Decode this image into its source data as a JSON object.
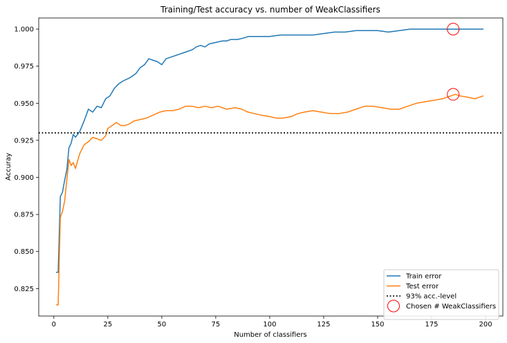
{
  "chart_data": {
    "type": "line",
    "title": "Training/Test accuracy vs. number of WeakClassifiers",
    "xlabel": "Number of classifiers",
    "ylabel": "Accuray",
    "xlim": [
      -7,
      208
    ],
    "ylim": [
      0.8065,
      1.0075
    ],
    "xticks": [
      0,
      25,
      50,
      75,
      100,
      125,
      150,
      175,
      200
    ],
    "yticks": [
      0.825,
      0.85,
      0.875,
      0.9,
      0.925,
      0.95,
      0.975,
      1.0
    ],
    "ytick_labels": [
      "0.825",
      "0.850",
      "0.875",
      "0.900",
      "0.925",
      "0.950",
      "0.975",
      "1.000"
    ],
    "grid": false,
    "legend_position": "lower-right",
    "series": [
      {
        "name": "Train error",
        "color": "#1f77b4",
        "style": "solid",
        "points": [
          [
            1,
            0.836
          ],
          [
            2,
            0.836
          ],
          [
            3,
            0.887
          ],
          [
            4,
            0.89
          ],
          [
            5,
            0.898
          ],
          [
            6,
            0.905
          ],
          [
            7,
            0.92
          ],
          [
            8,
            0.923
          ],
          [
            9,
            0.929
          ],
          [
            10,
            0.927
          ],
          [
            12,
            0.931
          ],
          [
            14,
            0.938
          ],
          [
            16,
            0.946
          ],
          [
            18,
            0.944
          ],
          [
            20,
            0.948
          ],
          [
            22,
            0.947
          ],
          [
            24,
            0.953
          ],
          [
            26,
            0.955
          ],
          [
            28,
            0.96
          ],
          [
            30,
            0.963
          ],
          [
            32,
            0.965
          ],
          [
            35,
            0.967
          ],
          [
            38,
            0.97
          ],
          [
            40,
            0.974
          ],
          [
            42,
            0.976
          ],
          [
            44,
            0.98
          ],
          [
            46,
            0.979
          ],
          [
            48,
            0.978
          ],
          [
            50,
            0.976
          ],
          [
            52,
            0.98
          ],
          [
            54,
            0.981
          ],
          [
            56,
            0.982
          ],
          [
            58,
            0.983
          ],
          [
            60,
            0.984
          ],
          [
            62,
            0.985
          ],
          [
            64,
            0.986
          ],
          [
            66,
            0.988
          ],
          [
            68,
            0.989
          ],
          [
            70,
            0.988
          ],
          [
            72,
            0.99
          ],
          [
            75,
            0.991
          ],
          [
            78,
            0.992
          ],
          [
            80,
            0.992
          ],
          [
            82,
            0.993
          ],
          [
            85,
            0.993
          ],
          [
            88,
            0.994
          ],
          [
            90,
            0.995
          ],
          [
            93,
            0.995
          ],
          [
            96,
            0.995
          ],
          [
            100,
            0.995
          ],
          [
            105,
            0.996
          ],
          [
            110,
            0.996
          ],
          [
            115,
            0.996
          ],
          [
            120,
            0.996
          ],
          [
            125,
            0.997
          ],
          [
            130,
            0.998
          ],
          [
            135,
            0.998
          ],
          [
            140,
            0.999
          ],
          [
            145,
            0.999
          ],
          [
            150,
            0.999
          ],
          [
            155,
            0.998
          ],
          [
            160,
            0.999
          ],
          [
            165,
            1.0
          ],
          [
            170,
            1.0
          ],
          [
            175,
            1.0
          ],
          [
            180,
            1.0
          ],
          [
            185,
            1.0
          ],
          [
            190,
            1.0
          ],
          [
            195,
            1.0
          ],
          [
            199,
            1.0
          ]
        ]
      },
      {
        "name": "Test error",
        "color": "#ff7f0e",
        "style": "solid",
        "points": [
          [
            1,
            0.814
          ],
          [
            2,
            0.814
          ],
          [
            3,
            0.873
          ],
          [
            4,
            0.877
          ],
          [
            5,
            0.884
          ],
          [
            6,
            0.898
          ],
          [
            7,
            0.912
          ],
          [
            8,
            0.908
          ],
          [
            9,
            0.91
          ],
          [
            10,
            0.906
          ],
          [
            12,
            0.916
          ],
          [
            14,
            0.922
          ],
          [
            16,
            0.924
          ],
          [
            18,
            0.927
          ],
          [
            20,
            0.926
          ],
          [
            22,
            0.925
          ],
          [
            24,
            0.928
          ],
          [
            25,
            0.933
          ],
          [
            27,
            0.935
          ],
          [
            29,
            0.937
          ],
          [
            31,
            0.935
          ],
          [
            33,
            0.935
          ],
          [
            35,
            0.936
          ],
          [
            37,
            0.938
          ],
          [
            40,
            0.939
          ],
          [
            43,
            0.94
          ],
          [
            46,
            0.942
          ],
          [
            49,
            0.944
          ],
          [
            52,
            0.945
          ],
          [
            55,
            0.945
          ],
          [
            58,
            0.946
          ],
          [
            61,
            0.948
          ],
          [
            64,
            0.948
          ],
          [
            67,
            0.947
          ],
          [
            70,
            0.948
          ],
          [
            73,
            0.947
          ],
          [
            76,
            0.948
          ],
          [
            80,
            0.946
          ],
          [
            84,
            0.947
          ],
          [
            87,
            0.946
          ],
          [
            90,
            0.944
          ],
          [
            93,
            0.943
          ],
          [
            96,
            0.942
          ],
          [
            100,
            0.941
          ],
          [
            103,
            0.94
          ],
          [
            106,
            0.94
          ],
          [
            110,
            0.941
          ],
          [
            113,
            0.943
          ],
          [
            116,
            0.944
          ],
          [
            120,
            0.945
          ],
          [
            124,
            0.944
          ],
          [
            128,
            0.943
          ],
          [
            132,
            0.943
          ],
          [
            136,
            0.944
          ],
          [
            140,
            0.946
          ],
          [
            144,
            0.948
          ],
          [
            148,
            0.948
          ],
          [
            152,
            0.947
          ],
          [
            156,
            0.946
          ],
          [
            160,
            0.946
          ],
          [
            164,
            0.948
          ],
          [
            168,
            0.95
          ],
          [
            172,
            0.951
          ],
          [
            176,
            0.952
          ],
          [
            180,
            0.953
          ],
          [
            184,
            0.955
          ],
          [
            186,
            0.956
          ],
          [
            188,
            0.955
          ],
          [
            192,
            0.954
          ],
          [
            195,
            0.953
          ],
          [
            197,
            0.954
          ],
          [
            199,
            0.955
          ]
        ]
      },
      {
        "name": "93% acc.-level",
        "color": "#000000",
        "style": "dotted",
        "y": 0.93
      }
    ],
    "markers": {
      "name": "Chosen # WeakClassifiers",
      "color": "#ff0000",
      "points": [
        [
          185,
          1.0
        ],
        [
          185,
          0.956
        ]
      ]
    }
  }
}
